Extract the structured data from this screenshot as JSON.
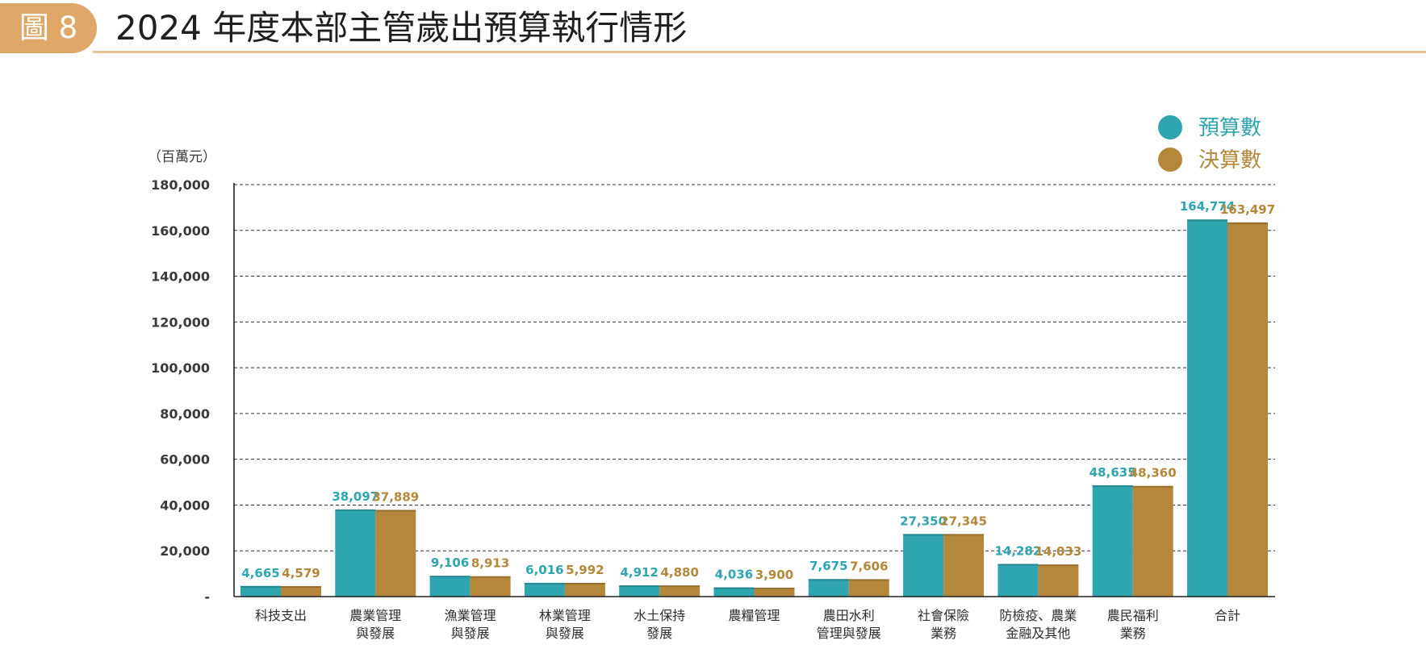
{
  "figure": {
    "label": "圖 8",
    "title": "2024 年度本部主管歲出預算執行情形"
  },
  "chart_data": {
    "type": "bar",
    "unit_label": "（百萬元）",
    "ylim": [
      0,
      180000
    ],
    "ytick_values": [
      0,
      20000,
      40000,
      60000,
      80000,
      100000,
      120000,
      140000,
      160000,
      180000
    ],
    "ytick_labels": [
      "-",
      "20,000",
      "40,000",
      "60,000",
      "80,000",
      "100,000",
      "120,000",
      "140,000",
      "160,000",
      "180,000"
    ],
    "grid": "horizontal dashed",
    "legend_position": "top-right",
    "categories": [
      [
        "科技支出"
      ],
      [
        "農業管理",
        "與發展"
      ],
      [
        "漁業管理",
        "與發展"
      ],
      [
        "林業管理",
        "與發展"
      ],
      [
        "水土保持",
        "發展"
      ],
      [
        "農糧管理"
      ],
      [
        "農田水利",
        "管理與發展"
      ],
      [
        "社會保險",
        "業務"
      ],
      [
        "防檢疫、農業",
        "金融及其他"
      ],
      [
        "農民福利",
        "業務"
      ],
      [
        "合計"
      ]
    ],
    "series": [
      {
        "name": "預算數",
        "color": "#2fa5b0",
        "values": [
          4665,
          38097,
          9106,
          6016,
          4912,
          4036,
          7675,
          27350,
          14282,
          48635,
          164774
        ],
        "labels": [
          "4,665",
          "38,097",
          "9,106",
          "6,016",
          "4,912",
          "4,036",
          "7,675",
          "27,350",
          "14,282",
          "48,635",
          "164,774"
        ]
      },
      {
        "name": "決算數",
        "color": "#b5873a",
        "values": [
          4579,
          37889,
          8913,
          5992,
          4880,
          3900,
          7606,
          27345,
          14033,
          48360,
          163497
        ],
        "labels": [
          "4,579",
          "37,889",
          "8,913",
          "5,992",
          "4,880",
          "3,900",
          "7,606",
          "27,345",
          "14,033",
          "48,360",
          "163,497"
        ]
      }
    ]
  }
}
